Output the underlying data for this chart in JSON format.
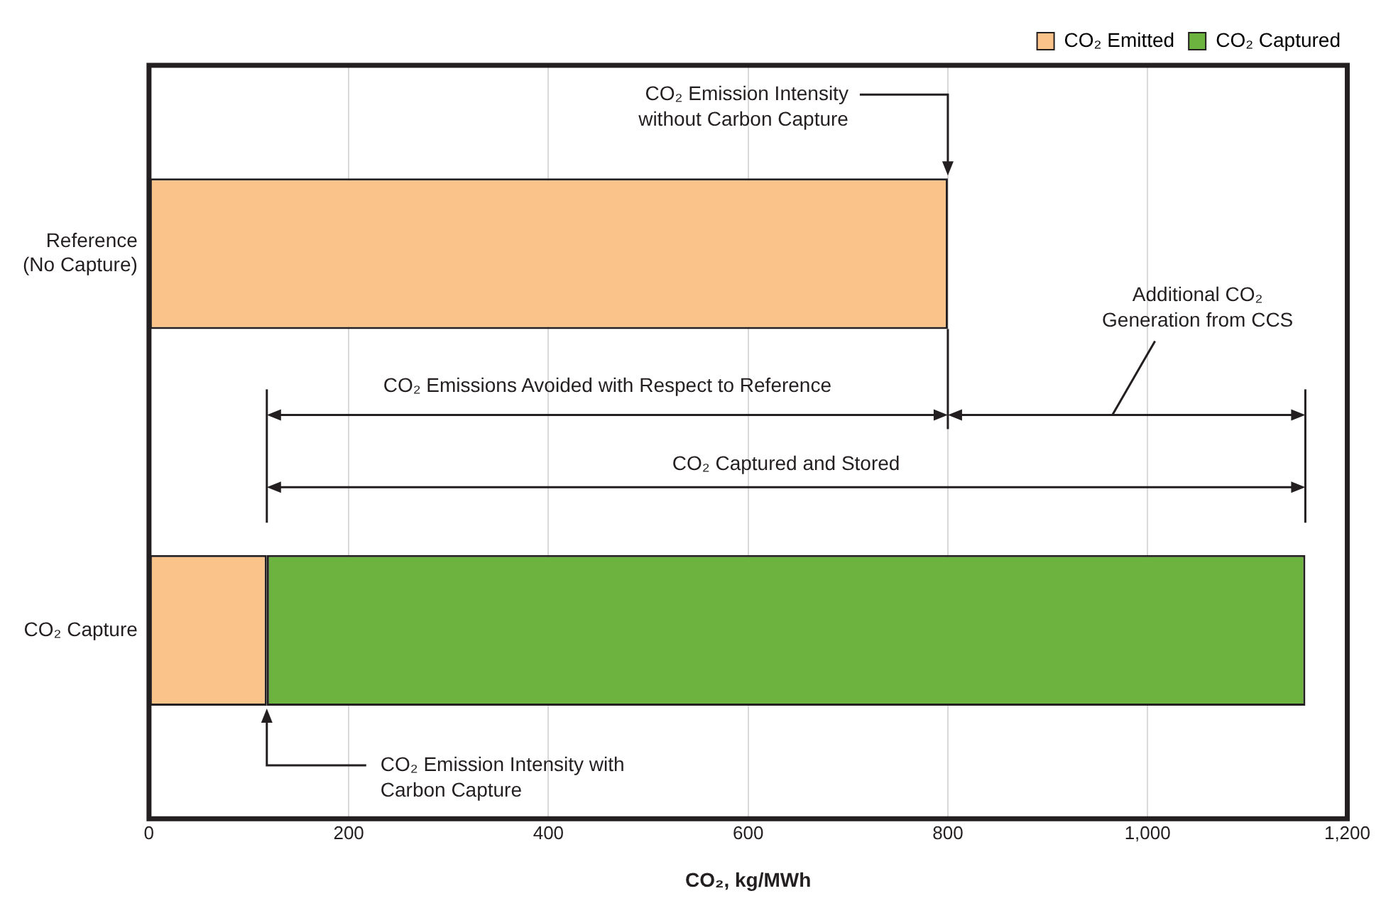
{
  "chart_data": {
    "type": "bar",
    "orientation": "horizontal",
    "stacked": true,
    "categories": [
      "Reference\n(No Capture)",
      "CO₂ Capture"
    ],
    "series": [
      {
        "name": "CO₂ Emitted",
        "color": "#f9c38a",
        "values": [
          800,
          118
        ]
      },
      {
        "name": "CO₂ Captured",
        "color": "#6db33f",
        "values": [
          null,
          1040
        ]
      }
    ],
    "xlabel": "CO₂, kg/MWh",
    "xlim": [
      0,
      1200
    ],
    "xticks": [
      0,
      200,
      400,
      600,
      800,
      {
        "value": 1000,
        "label": "1,000"
      },
      {
        "value": 1200,
        "label": "1,200"
      }
    ],
    "grid": "x",
    "legend": "top right",
    "annotations": [
      "CO₂ Emission Intensity\nwithout Carbon Capture",
      "CO₂ Emissions Avoided with Respect to Reference",
      "Additional CO₂\nGeneration from CCS",
      "CO₂ Captured and Stored",
      "CO₂ Emission Intensity with\nCarbon Capture"
    ]
  }
}
